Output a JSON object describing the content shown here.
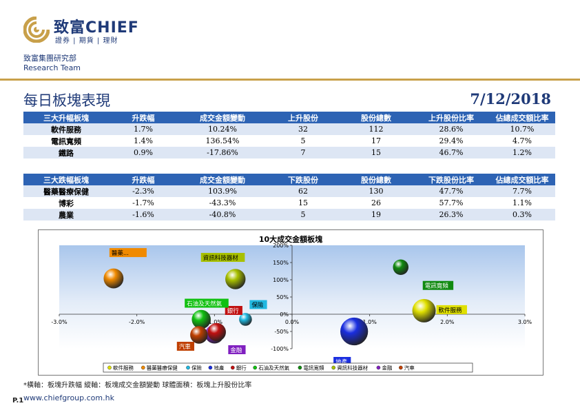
{
  "header": {
    "brand_cn": "致富",
    "brand_en": "CHIEF",
    "brand_sub": "證券 | 期貨 | 理財",
    "dept": "致富集團研究部",
    "team": "Research Team",
    "title": "每日板塊表現",
    "date": "7/12/2018"
  },
  "top_gainers": {
    "headers": [
      "三大升幅板塊",
      "升跌幅",
      "成交金額變動",
      "上升股份",
      "股份總數",
      "上升股份比率",
      "佔總成交額比率"
    ],
    "rows": [
      [
        "軟件服務",
        "1.7%",
        "10.24%",
        "32",
        "112",
        "28.6%",
        "10.7%"
      ],
      [
        "電訊寬頻",
        "1.4%",
        "136.54%",
        "5",
        "17",
        "29.4%",
        "4.7%"
      ],
      [
        "鐵路",
        "0.9%",
        "-17.86%",
        "7",
        "15",
        "46.7%",
        "1.2%"
      ]
    ]
  },
  "top_losers": {
    "headers": [
      "三大跌幅板塊",
      "升跌幅",
      "成交金額變動",
      "下跌股份",
      "股份總數",
      "下跌股份比率",
      "佔總成交額比率"
    ],
    "rows": [
      [
        "醫藥醫療保健",
        "-2.3%",
        "103.9%",
        "62",
        "130",
        "47.7%",
        "7.7%"
      ],
      [
        "博彩",
        "-1.7%",
        "-43.3%",
        "15",
        "26",
        "57.7%",
        "1.1%"
      ],
      [
        "農業",
        "-1.6%",
        "-40.8%",
        "5",
        "19",
        "26.3%",
        "0.3%"
      ]
    ]
  },
  "chart_data": {
    "type": "scatter",
    "title": "10大成交金額板塊",
    "x_ticks": [
      "-3.0%",
      "-2.0%",
      "-1.0%",
      "0.0%",
      "1.0%",
      "2.0%",
      "3.0%"
    ],
    "y_ticks": [
      "200%",
      "150%",
      "100%",
      "50%",
      "0%",
      "-50%",
      "-100%"
    ],
    "xlim": [
      -3.0,
      3.0
    ],
    "ylim": [
      -100,
      200
    ],
    "series": [
      {
        "name": "軟件服務",
        "label": "軟件服務",
        "x": 1.7,
        "y": 10.24,
        "size": 10.7,
        "color": "#e0e000"
      },
      {
        "name": "醫藥醫療保健",
        "label": "醫藥...",
        "x": -2.3,
        "y": 103.9,
        "size": 7.7,
        "color": "#f08a00"
      },
      {
        "name": "保險",
        "label": "保險",
        "x": -0.6,
        "y": -15,
        "size": 3.2,
        "color": "#20b8e0"
      },
      {
        "name": "地產",
        "label": "地產",
        "x": 0.8,
        "y": -50,
        "size": 15.0,
        "color": "#1a2ee0"
      },
      {
        "name": "銀行",
        "label": "銀行",
        "x": -0.97,
        "y": -52,
        "size": 6.5,
        "color": "#c01010"
      },
      {
        "name": "石油及天然氣",
        "label": "石油及天然氣",
        "x": -1.17,
        "y": -15,
        "size": 7.0,
        "color": "#10c010"
      },
      {
        "name": "電訊寬頻",
        "label": "電訊寬頻",
        "x": 1.4,
        "y": 136.54,
        "size": 4.7,
        "color": "#108a10"
      },
      {
        "name": "資訊科技器材",
        "label": "資訊科技器材",
        "x": -0.73,
        "y": 102,
        "size": 8.0,
        "color": "#a8c000"
      },
      {
        "name": "金融",
        "label": "金融",
        "x": -1.0,
        "y": -58,
        "size": 6.8,
        "color": "#8020c0"
      },
      {
        "name": "汽車",
        "label": "汽車",
        "x": -1.2,
        "y": -60,
        "size": 6.0,
        "color": "#c04000"
      }
    ],
    "legend_position": "bottom"
  },
  "footer": {
    "note": "*橫軸：板塊升跌幅     縱軸：板塊成交金額變動     球體面積：板塊上升股份比率",
    "page": "P.1",
    "website": "www.chiefgroup.com.hk"
  }
}
